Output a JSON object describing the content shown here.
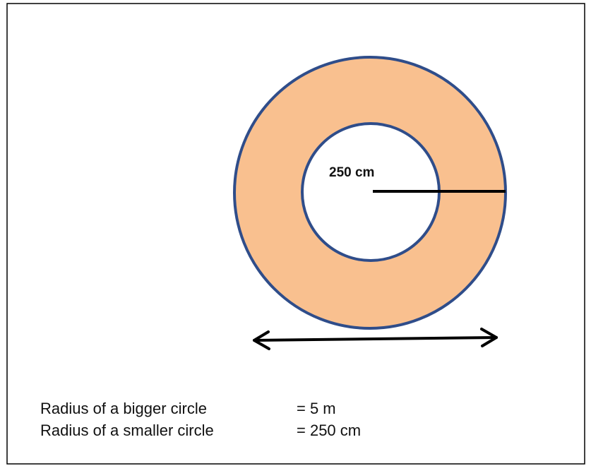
{
  "diagram": {
    "inner_label": "250 cm"
  },
  "legend": [
    {
      "label": "Radius of a bigger circle",
      "value": "= 5 m"
    },
    {
      "label": "Radius of a smaller circle",
      "value": "= 250 cm"
    }
  ]
}
